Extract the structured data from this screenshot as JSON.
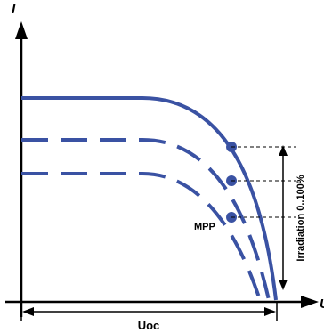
{
  "diagram": {
    "y_axis_label": "I",
    "x_axis_label": "U",
    "mpp_label": "MPP",
    "irradiation_label": "Irradiation 0..100%",
    "uoc_label": "Uoc"
  },
  "colors": {
    "curve": "#3a52a3",
    "axes": "#000000",
    "background": "#ffffff"
  },
  "chart_data": {
    "type": "line",
    "xlabel": "U",
    "ylabel": "I",
    "annotations": [
      "MPP",
      "Irradiation 0..100%",
      "Uoc"
    ],
    "series": [
      {
        "style": "solid",
        "mpp_marked": true
      },
      {
        "style": "dashed",
        "mpp_marked": true
      },
      {
        "style": "dashed",
        "mpp_marked": true
      }
    ]
  }
}
